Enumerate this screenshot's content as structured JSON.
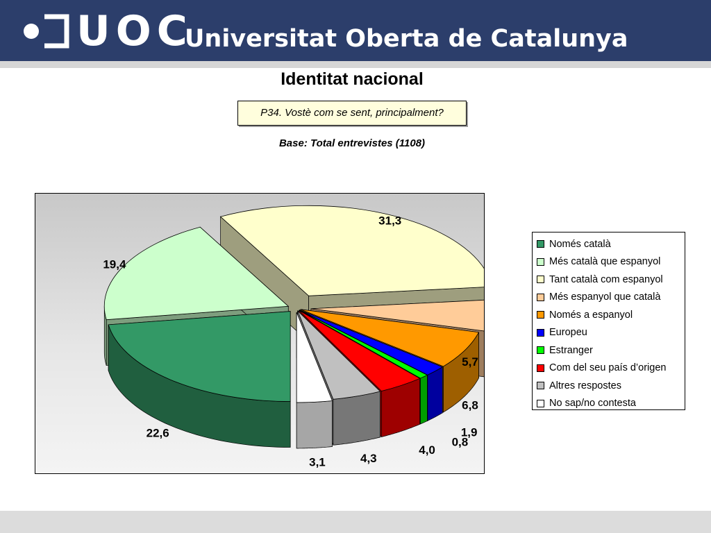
{
  "header": {
    "brand": "UOC",
    "university_name": "Universitat Oberta de Catalunya",
    "color": "#2c3e6b"
  },
  "slide": {
    "title": "Identitat nacional",
    "question": "P34. Vostè com se sent, principalment?",
    "base": "Base: Total entrevistes (1108)"
  },
  "chart_data": {
    "type": "pie",
    "style": "3d-exploded",
    "categories": [
      "Només català",
      "Més català que espanyol",
      "Tant català com espanyol",
      "Més espanyol que català",
      "Només a espanyol",
      "Europeu",
      "Estranger",
      "Com del seu país d’origen",
      "Altres respostes",
      "No sap/no contesta"
    ],
    "values": [
      22.6,
      19.4,
      31.3,
      5.7,
      6.8,
      1.9,
      0.8,
      4.0,
      4.3,
      3.1
    ],
    "labels": [
      "22,6",
      "19,4",
      "31,3",
      "5,7",
      "6,8",
      "1,9",
      "0,8",
      "4,0",
      "4,3",
      "3,1"
    ],
    "colors": [
      "#339966",
      "#ccffcc",
      "#ffffcc",
      "#ffcc99",
      "#ff9900",
      "#0000ff",
      "#00ff00",
      "#ff0000",
      "#c0c0c0",
      "#ffffff"
    ],
    "legend_position": "right"
  }
}
